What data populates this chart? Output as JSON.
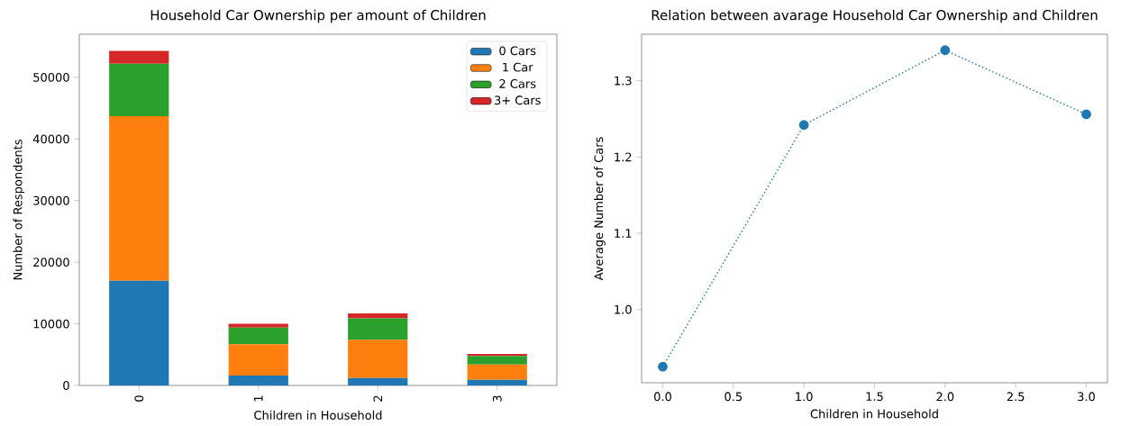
{
  "chart_data": [
    {
      "type": "bar",
      "title": "Household Car Ownership per amount of Children",
      "xlabel": "Children in Household",
      "ylabel": "Number of Respondents",
      "categories": [
        "0",
        "1",
        "2",
        "3"
      ],
      "stacked": true,
      "series": [
        {
          "name": "0 Cars",
          "color": "#1f77b4",
          "values": [
            17000,
            1600,
            1200,
            900
          ]
        },
        {
          "name": "1 Car",
          "color": "#ff7f0e",
          "values": [
            26700,
            5100,
            6200,
            2500
          ]
        },
        {
          "name": "2 Cars",
          "color": "#2ca02c",
          "values": [
            8500,
            2700,
            3500,
            1400
          ]
        },
        {
          "name": "3+ Cars",
          "color": "#d62728",
          "values": [
            2100,
            600,
            800,
            300
          ]
        }
      ],
      "ylim": [
        0,
        57000
      ],
      "yticks": [
        0,
        10000,
        20000,
        30000,
        40000,
        50000
      ],
      "legend": "top right"
    },
    {
      "type": "line",
      "title": "Relation between avarage Household Car Ownership and Children",
      "xlabel": "Children in Household",
      "ylabel": "Average Number of Cars",
      "x": [
        0,
        1,
        2,
        3
      ],
      "series": [
        {
          "color": "#1f77b4",
          "values": [
            0.925,
            1.242,
            1.34,
            1.256
          ]
        }
      ],
      "xlim": [
        -0.15,
        3.15
      ],
      "ylim": [
        0.904,
        1.361
      ],
      "xticks": [
        {
          "value": 0,
          "label": "0.0"
        },
        {
          "value": 0.5,
          "label": "0.5"
        },
        {
          "value": 1,
          "label": "1.0"
        },
        {
          "value": 1.5,
          "label": "1.5"
        },
        {
          "value": 2,
          "label": "2.0"
        },
        {
          "value": 2.5,
          "label": "2.5"
        },
        {
          "value": 3,
          "label": "3.0"
        }
      ],
      "yticks": [
        {
          "value": 1,
          "label": "1.0"
        },
        {
          "value": 1.1,
          "label": "1.1"
        },
        {
          "value": 1.2,
          "label": "1.2"
        },
        {
          "value": 1.3,
          "label": "1.3"
        }
      ],
      "marker": "circle",
      "line_style": "dotted",
      "legend": false
    }
  ]
}
